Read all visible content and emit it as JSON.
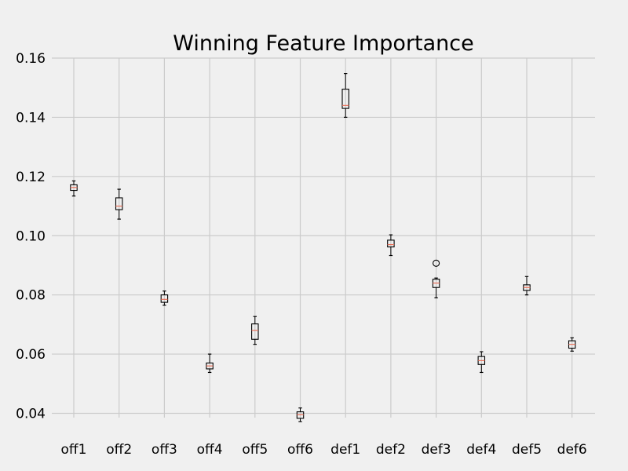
{
  "chart_data": {
    "type": "box",
    "title": "Winning Feature Importance",
    "xlabel": "",
    "ylabel": "",
    "ylim": [
      0.034,
      0.161
    ],
    "yticks": [
      "0.04",
      "0.06",
      "0.08",
      "0.10",
      "0.12",
      "0.14",
      "0.16"
    ],
    "ytick_values": [
      0.04,
      0.06,
      0.08,
      0.1,
      0.12,
      0.14,
      0.16
    ],
    "grid": true,
    "categories": [
      "off1",
      "off2",
      "off3",
      "off4",
      "off5",
      "off6",
      "def1",
      "def2",
      "def3",
      "def4",
      "def5",
      "def6"
    ],
    "boxes": [
      {
        "category": "off1",
        "whisker_low": 0.1134,
        "q1": 0.1153,
        "median": 0.1163,
        "q3": 0.1172,
        "whisker_high": 0.1185,
        "outliers": []
      },
      {
        "category": "off2",
        "whisker_low": 0.1056,
        "q1": 0.1088,
        "median": 0.11,
        "q3": 0.1128,
        "whisker_high": 0.1157,
        "outliers": []
      },
      {
        "category": "off3",
        "whisker_low": 0.0765,
        "q1": 0.0775,
        "median": 0.0785,
        "q3": 0.08,
        "whisker_high": 0.0813,
        "outliers": []
      },
      {
        "category": "off4",
        "whisker_low": 0.0538,
        "q1": 0.055,
        "median": 0.056,
        "q3": 0.057,
        "whisker_high": 0.06,
        "outliers": []
      },
      {
        "category": "off5",
        "whisker_low": 0.0633,
        "q1": 0.065,
        "median": 0.068,
        "q3": 0.0702,
        "whisker_high": 0.0727,
        "outliers": []
      },
      {
        "category": "off6",
        "whisker_low": 0.0372,
        "q1": 0.0383,
        "median": 0.0395,
        "q3": 0.0405,
        "whisker_high": 0.0418,
        "outliers": []
      },
      {
        "category": "def1",
        "whisker_low": 0.14,
        "q1": 0.143,
        "median": 0.144,
        "q3": 0.1495,
        "whisker_high": 0.1548,
        "outliers": []
      },
      {
        "category": "def2",
        "whisker_low": 0.0933,
        "q1": 0.0962,
        "median": 0.097,
        "q3": 0.0985,
        "whisker_high": 0.1003,
        "outliers": []
      },
      {
        "category": "def3",
        "whisker_low": 0.079,
        "q1": 0.0825,
        "median": 0.084,
        "q3": 0.0853,
        "whisker_high": 0.0857,
        "outliers": [
          0.0907
        ]
      },
      {
        "category": "def4",
        "whisker_low": 0.0538,
        "q1": 0.0565,
        "median": 0.0578,
        "q3": 0.0592,
        "whisker_high": 0.0608,
        "outliers": []
      },
      {
        "category": "def5",
        "whisker_low": 0.08,
        "q1": 0.0815,
        "median": 0.0825,
        "q3": 0.0834,
        "whisker_high": 0.0862,
        "outliers": []
      },
      {
        "category": "def6",
        "whisker_low": 0.061,
        "q1": 0.062,
        "median": 0.0633,
        "q3": 0.0645,
        "whisker_high": 0.0655,
        "outliers": []
      }
    ],
    "colors": {
      "background": "#f0f0f0",
      "grid": "#cbcbcb",
      "box": "#000000",
      "median": "#e8715a"
    }
  }
}
